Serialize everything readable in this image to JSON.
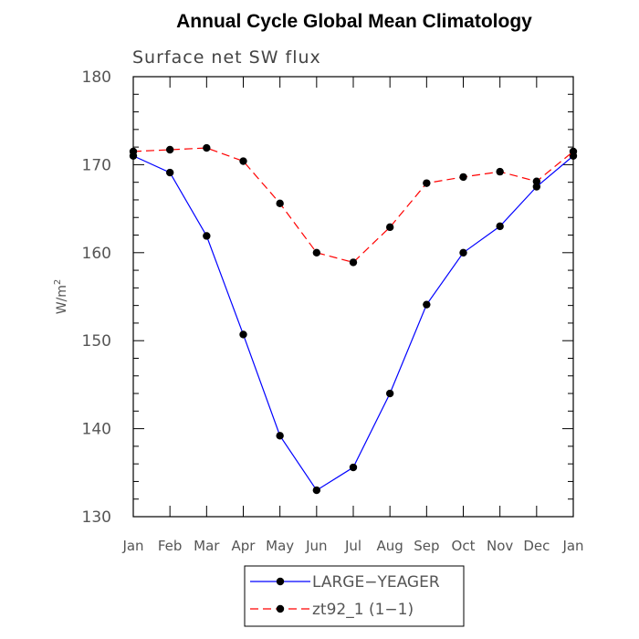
{
  "chart_data": {
    "type": "line",
    "title": "Annual Cycle Global Mean Climatology",
    "subtitle": "Surface net SW flux",
    "xlabel": "",
    "ylabel": "W/m",
    "ylabel_superscript": "2",
    "categories": [
      "Jan",
      "Feb",
      "Mar",
      "Apr",
      "May",
      "Jun",
      "Jul",
      "Aug",
      "Sep",
      "Oct",
      "Nov",
      "Dec",
      "Jan"
    ],
    "ylim": [
      130,
      180
    ],
    "yticks": [
      130,
      140,
      150,
      160,
      170,
      180
    ],
    "legend_position": "bottom-center",
    "series": [
      {
        "name": "LARGE−YEAGER",
        "color": "#0000ff",
        "dash": "solid",
        "values": [
          171.0,
          169.1,
          161.9,
          150.7,
          139.2,
          133.0,
          135.6,
          144.0,
          154.1,
          160.0,
          163.0,
          167.5,
          171.0
        ]
      },
      {
        "name": "zt92_1 (1−1)",
        "color": "#ff0000",
        "dash": "dashed",
        "values": [
          171.5,
          171.7,
          171.9,
          170.4,
          165.6,
          160.0,
          158.9,
          162.9,
          167.9,
          168.6,
          169.2,
          168.1,
          171.5
        ]
      }
    ]
  }
}
